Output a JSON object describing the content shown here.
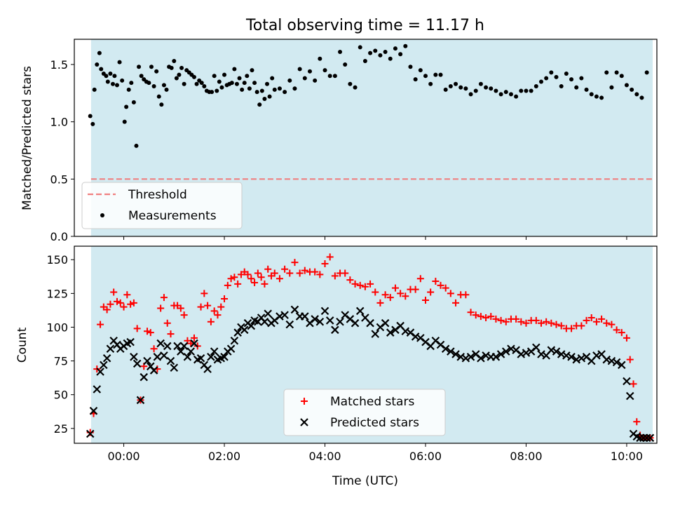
{
  "figure": {
    "title": "Total observing time = 11.17 h",
    "xlabel": "Time (UTC)"
  },
  "colors": {
    "shade": "#add8e6",
    "threshold": "#f08080",
    "matched": "#ff0000",
    "predicted": "#000000",
    "measurements": "#000000"
  },
  "chart_data": [
    {
      "type": "scatter",
      "panel": "top",
      "ylabel": "Matched/Predicted stars",
      "xlim": [
        "23:01",
        "10:36"
      ],
      "ylim": [
        0,
        1.72
      ],
      "yticks": [
        0.0,
        0.5,
        1.0,
        1.5
      ],
      "ytick_labels": [
        "0.0",
        "0.5",
        "1.0",
        "1.5"
      ],
      "xticks": [
        "00:00",
        "02:00",
        "04:00",
        "06:00",
        "08:00",
        "10:00"
      ],
      "shaded_span": [
        "23:21",
        "10:31"
      ],
      "legend": {
        "location": "lower-left",
        "entries": [
          {
            "label": "Threshold",
            "key": "threshold"
          },
          {
            "label": "Measurements",
            "key": "measurements"
          }
        ]
      },
      "threshold": {
        "name": "Threshold",
        "y": 0.5,
        "x": [
          "23:21",
          "10:31"
        ],
        "style": "dashed"
      },
      "series": [
        {
          "name": "Measurements",
          "marker": "dot",
          "x": [
            "23:20",
            "23:23",
            "23:25",
            "23:28",
            "23:31",
            "23:33",
            "23:36",
            "23:39",
            "23:41",
            "23:44",
            "23:47",
            "23:49",
            "23:52",
            "23:55",
            "23:58",
            "00:01",
            "00:03",
            "00:06",
            "00:09",
            "00:12",
            "00:15",
            "00:18",
            "00:21",
            "00:24",
            "00:27",
            "00:30",
            "00:33",
            "00:36",
            "00:39",
            "00:42",
            "00:45",
            "00:48",
            "00:51",
            "00:54",
            "00:57",
            "01:00",
            "01:03",
            "01:06",
            "01:09",
            "01:12",
            "01:15",
            "01:18",
            "01:21",
            "01:24",
            "01:27",
            "01:30",
            "01:33",
            "01:36",
            "01:39",
            "01:42",
            "01:45",
            "01:48",
            "01:51",
            "01:54",
            "01:57",
            "02:00",
            "02:03",
            "02:06",
            "02:09",
            "02:12",
            "02:15",
            "02:18",
            "02:21",
            "02:24",
            "02:27",
            "02:30",
            "02:33",
            "02:36",
            "02:39",
            "02:42",
            "02:45",
            "02:48",
            "02:51",
            "02:54",
            "02:57",
            "03:00",
            "03:06",
            "03:12",
            "03:18",
            "03:24",
            "03:30",
            "03:36",
            "03:42",
            "03:48",
            "03:54",
            "04:00",
            "04:06",
            "04:12",
            "04:18",
            "04:24",
            "04:30",
            "04:36",
            "04:42",
            "04:48",
            "04:54",
            "05:00",
            "05:06",
            "05:12",
            "05:18",
            "05:24",
            "05:30",
            "05:36",
            "05:42",
            "05:48",
            "05:54",
            "06:00",
            "06:06",
            "06:12",
            "06:18",
            "06:24",
            "06:30",
            "06:36",
            "06:42",
            "06:48",
            "06:54",
            "07:00",
            "07:06",
            "07:12",
            "07:18",
            "07:24",
            "07:30",
            "07:36",
            "07:42",
            "07:48",
            "07:54",
            "08:00",
            "08:06",
            "08:12",
            "08:18",
            "08:24",
            "08:30",
            "08:36",
            "08:42",
            "08:48",
            "08:54",
            "09:00",
            "09:06",
            "09:12",
            "09:18",
            "09:24",
            "09:30",
            "09:36",
            "09:42",
            "09:48",
            "09:54",
            "10:00",
            "10:06",
            "10:12",
            "10:18",
            "10:24"
          ],
          "y": [
            1.05,
            0.98,
            1.28,
            1.5,
            1.6,
            1.46,
            1.42,
            1.4,
            1.35,
            1.42,
            1.33,
            1.4,
            1.32,
            1.52,
            1.36,
            1.0,
            1.13,
            1.28,
            1.34,
            1.17,
            0.79,
            1.48,
            1.4,
            1.37,
            1.35,
            1.34,
            1.48,
            1.31,
            1.44,
            1.22,
            1.15,
            1.32,
            1.28,
            1.48,
            1.47,
            1.53,
            1.38,
            1.41,
            1.47,
            1.33,
            1.45,
            1.43,
            1.41,
            1.39,
            1.33,
            1.36,
            1.34,
            1.31,
            1.27,
            1.26,
            1.26,
            1.4,
            1.27,
            1.35,
            1.3,
            1.41,
            1.32,
            1.33,
            1.34,
            1.46,
            1.33,
            1.38,
            1.28,
            1.34,
            1.4,
            1.29,
            1.45,
            1.34,
            1.26,
            1.15,
            1.27,
            1.2,
            1.33,
            1.22,
            1.38,
            1.28,
            1.29,
            1.26,
            1.36,
            1.29,
            1.46,
            1.38,
            1.44,
            1.36,
            1.55,
            1.45,
            1.4,
            1.4,
            1.61,
            1.5,
            1.33,
            1.3,
            1.65,
            1.53,
            1.6,
            1.62,
            1.58,
            1.61,
            1.55,
            1.64,
            1.59,
            1.66,
            1.48,
            1.37,
            1.45,
            1.4,
            1.33,
            1.41,
            1.41,
            1.28,
            1.31,
            1.33,
            1.3,
            1.29,
            1.24,
            1.27,
            1.33,
            1.3,
            1.29,
            1.27,
            1.24,
            1.26,
            1.24,
            1.22,
            1.27,
            1.27,
            1.27,
            1.31,
            1.35,
            1.38,
            1.43,
            1.39,
            1.31,
            1.42,
            1.37,
            1.3,
            1.38,
            1.28,
            1.24,
            1.22,
            1.21,
            1.43,
            1.3,
            1.43,
            1.4,
            1.32,
            1.28,
            1.24,
            1.21,
            1.43
          ]
        }
      ]
    },
    {
      "type": "scatter",
      "panel": "bottom",
      "ylabel": "Count",
      "xlabel": "Time (UTC)",
      "xlim": [
        "23:01",
        "10:36"
      ],
      "ylim": [
        14,
        160
      ],
      "yticks": [
        25,
        50,
        75,
        100,
        125,
        150
      ],
      "ytick_labels": [
        "25",
        "50",
        "75",
        "100",
        "125",
        "150"
      ],
      "xticks": [
        "00:00",
        "02:00",
        "04:00",
        "06:00",
        "08:00",
        "10:00"
      ],
      "shaded_span": [
        "23:21",
        "10:31"
      ],
      "legend": {
        "location": "lower-center",
        "entries": [
          {
            "label": "Matched stars",
            "key": "matched"
          },
          {
            "label": "Predicted stars",
            "key": "predicted"
          }
        ]
      },
      "series": [
        {
          "name": "Matched stars",
          "marker": "plus",
          "x": [
            "23:20",
            "23:24",
            "23:28",
            "23:32",
            "23:36",
            "23:40",
            "23:44",
            "23:48",
            "23:52",
            "23:56",
            "00:00",
            "00:04",
            "00:08",
            "00:12",
            "00:16",
            "00:20",
            "00:24",
            "00:28",
            "00:32",
            "00:36",
            "00:40",
            "00:44",
            "00:48",
            "00:52",
            "00:56",
            "01:00",
            "01:04",
            "01:08",
            "01:12",
            "01:16",
            "01:20",
            "01:24",
            "01:28",
            "01:32",
            "01:36",
            "01:40",
            "01:44",
            "01:48",
            "01:52",
            "01:56",
            "02:00",
            "02:04",
            "02:08",
            "02:12",
            "02:16",
            "02:20",
            "02:24",
            "02:28",
            "02:32",
            "02:36",
            "02:40",
            "02:44",
            "02:48",
            "02:52",
            "02:56",
            "03:00",
            "03:06",
            "03:12",
            "03:18",
            "03:24",
            "03:30",
            "03:36",
            "03:42",
            "03:48",
            "03:54",
            "04:00",
            "04:06",
            "04:12",
            "04:18",
            "04:24",
            "04:30",
            "04:36",
            "04:42",
            "04:48",
            "04:54",
            "05:00",
            "05:06",
            "05:12",
            "05:18",
            "05:24",
            "05:30",
            "05:36",
            "05:42",
            "05:48",
            "05:54",
            "06:00",
            "06:06",
            "06:12",
            "06:18",
            "06:24",
            "06:30",
            "06:36",
            "06:42",
            "06:48",
            "06:54",
            "07:00",
            "07:06",
            "07:12",
            "07:18",
            "07:24",
            "07:30",
            "07:36",
            "07:42",
            "07:48",
            "07:54",
            "08:00",
            "08:06",
            "08:12",
            "08:18",
            "08:24",
            "08:30",
            "08:36",
            "08:42",
            "08:48",
            "08:54",
            "09:00",
            "09:06",
            "09:12",
            "09:18",
            "09:24",
            "09:30",
            "09:36",
            "09:42",
            "09:48",
            "09:54",
            "10:00",
            "10:04",
            "10:08",
            "10:12",
            "10:16",
            "10:20",
            "10:24",
            "10:28"
          ],
          "y": [
            22,
            36,
            69,
            102,
            115,
            113,
            117,
            126,
            119,
            118,
            115,
            124,
            117,
            118,
            99,
            46,
            71,
            97,
            96,
            84,
            69,
            114,
            122,
            103,
            95,
            116,
            116,
            114,
            109,
            90,
            88,
            92,
            86,
            115,
            125,
            116,
            104,
            112,
            109,
            115,
            121,
            131,
            136,
            137,
            132,
            139,
            141,
            139,
            136,
            133,
            140,
            137,
            132,
            143,
            138,
            140,
            136,
            143,
            140,
            148,
            140,
            142,
            141,
            141,
            139,
            147,
            152,
            138,
            140,
            140,
            135,
            132,
            131,
            130,
            132,
            126,
            118,
            124,
            122,
            129,
            125,
            123,
            128,
            128,
            136,
            120,
            126,
            134,
            131,
            129,
            125,
            118,
            124,
            124,
            111,
            109,
            108,
            107,
            108,
            106,
            105,
            104,
            106,
            106,
            104,
            103,
            105,
            105,
            103,
            104,
            103,
            102,
            101,
            99,
            99,
            101,
            101,
            105,
            107,
            104,
            106,
            103,
            102,
            98,
            96,
            92,
            76,
            58,
            30,
            20,
            18,
            18,
            18
          ]
        },
        {
          "name": "Predicted stars",
          "marker": "x",
          "x": [
            "23:20",
            "23:24",
            "23:28",
            "23:32",
            "23:36",
            "23:40",
            "23:44",
            "23:48",
            "23:52",
            "23:56",
            "00:00",
            "00:04",
            "00:08",
            "00:12",
            "00:16",
            "00:20",
            "00:24",
            "00:28",
            "00:32",
            "00:36",
            "00:40",
            "00:44",
            "00:48",
            "00:52",
            "00:56",
            "01:00",
            "01:04",
            "01:08",
            "01:12",
            "01:16",
            "01:20",
            "01:24",
            "01:28",
            "01:32",
            "01:36",
            "01:40",
            "01:44",
            "01:48",
            "01:52",
            "01:56",
            "02:00",
            "02:04",
            "02:08",
            "02:12",
            "02:16",
            "02:20",
            "02:24",
            "02:28",
            "02:32",
            "02:36",
            "02:40",
            "02:44",
            "02:48",
            "02:52",
            "02:56",
            "03:00",
            "03:06",
            "03:12",
            "03:18",
            "03:24",
            "03:30",
            "03:36",
            "03:42",
            "03:48",
            "03:54",
            "04:00",
            "04:06",
            "04:12",
            "04:18",
            "04:24",
            "04:30",
            "04:36",
            "04:42",
            "04:48",
            "04:54",
            "05:00",
            "05:06",
            "05:12",
            "05:18",
            "05:24",
            "05:30",
            "05:36",
            "05:42",
            "05:48",
            "05:54",
            "06:00",
            "06:06",
            "06:12",
            "06:18",
            "06:24",
            "06:30",
            "06:36",
            "06:42",
            "06:48",
            "06:54",
            "07:00",
            "07:06",
            "07:12",
            "07:18",
            "07:24",
            "07:30",
            "07:36",
            "07:42",
            "07:48",
            "07:54",
            "08:00",
            "08:06",
            "08:12",
            "08:18",
            "08:24",
            "08:30",
            "08:36",
            "08:42",
            "08:48",
            "08:54",
            "09:00",
            "09:06",
            "09:12",
            "09:18",
            "09:24",
            "09:30",
            "09:36",
            "09:42",
            "09:48",
            "09:54",
            "10:00",
            "10:04",
            "10:08",
            "10:12",
            "10:16",
            "10:20",
            "10:24",
            "10:28"
          ],
          "y": [
            21,
            38,
            54,
            67,
            72,
            77,
            84,
            90,
            87,
            84,
            86,
            88,
            89,
            78,
            73,
            46,
            63,
            75,
            71,
            68,
            78,
            88,
            79,
            86,
            75,
            70,
            86,
            82,
            86,
            78,
            82,
            88,
            76,
            77,
            72,
            69,
            78,
            82,
            76,
            77,
            78,
            82,
            84,
            90,
            96,
            100,
            98,
            103,
            101,
            105,
            104,
            107,
            104,
            110,
            103,
            105,
            108,
            109,
            102,
            113,
            108,
            108,
            103,
            106,
            104,
            112,
            105,
            98,
            104,
            109,
            106,
            103,
            112,
            107,
            103,
            95,
            100,
            103,
            96,
            98,
            101,
            97,
            96,
            93,
            92,
            89,
            86,
            90,
            87,
            84,
            82,
            80,
            78,
            77,
            78,
            80,
            77,
            79,
            78,
            78,
            80,
            82,
            84,
            83,
            80,
            81,
            82,
            85,
            80,
            79,
            83,
            82,
            80,
            79,
            78,
            76,
            77,
            78,
            75,
            79,
            80,
            76,
            75,
            74,
            72,
            60,
            49,
            21,
            19,
            18,
            18,
            18,
            18
          ]
        }
      ]
    }
  ]
}
